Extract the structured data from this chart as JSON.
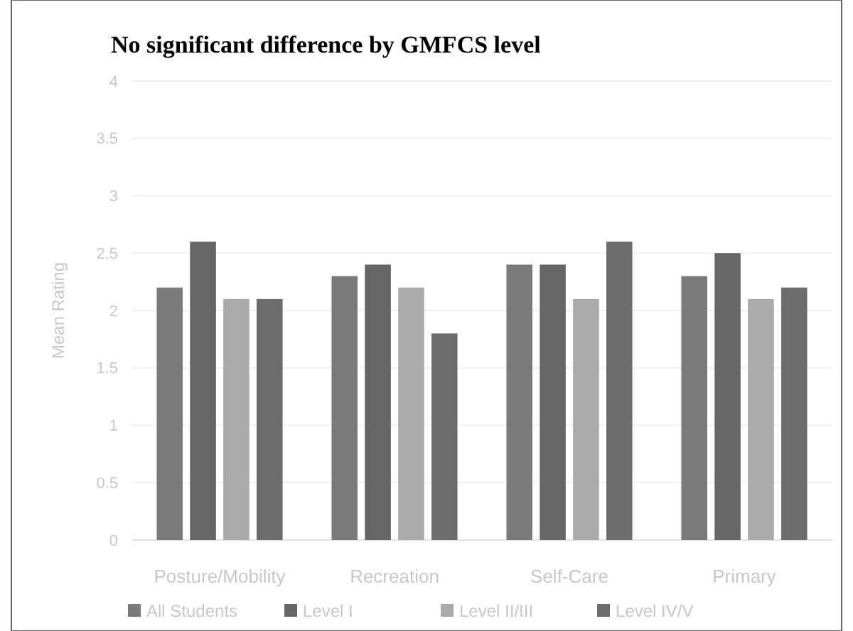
{
  "chart_data": {
    "type": "bar",
    "title": "No significant difference by GMFCS level",
    "ylabel": "Mean Rating",
    "categories": [
      "Posture/Mobility",
      "Recreation",
      "Self-Care",
      "Primary"
    ],
    "series": [
      {
        "name": "All Students",
        "color": "#7a7a7a",
        "values": [
          2.2,
          2.3,
          2.4,
          2.3
        ]
      },
      {
        "name": "Level I",
        "color": "#666666",
        "values": [
          2.6,
          2.4,
          2.4,
          2.5
        ]
      },
      {
        "name": "Level II/III",
        "color": "#aaaaaa",
        "values": [
          2.1,
          2.2,
          2.1,
          2.1
        ]
      },
      {
        "name": "Level IV/V",
        "color": "#6c6c6c",
        "values": [
          2.1,
          1.8,
          2.6,
          2.2
        ]
      }
    ],
    "ylim": [
      0,
      4
    ],
    "yticks": [
      0,
      0.5,
      1,
      1.5,
      2,
      2.5,
      3,
      3.5,
      4
    ],
    "grid": "y",
    "legend": "bottom"
  }
}
